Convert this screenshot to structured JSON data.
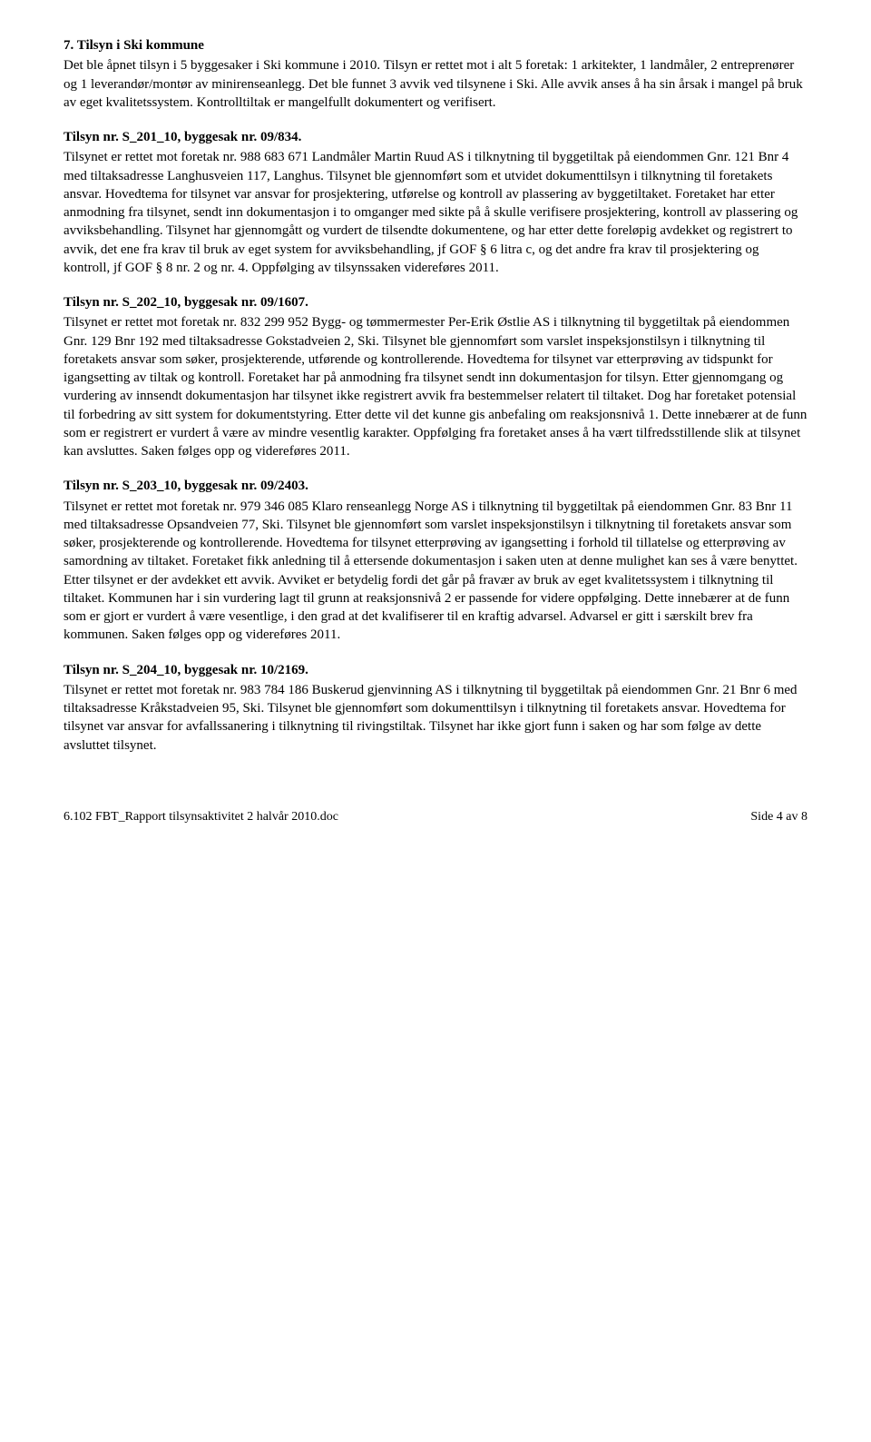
{
  "section7": {
    "heading": "7.  Tilsyn i Ski kommune",
    "intro": "Det ble åpnet tilsyn i 5 byggesaker i Ski kommune i 2010. Tilsyn er rettet mot i alt 5 foretak: 1 arkitekter, 1 landmåler, 2 entreprenører og 1 leverandør/montør av minirenseanlegg. Det ble funnet 3 avvik ved tilsynene i Ski. Alle avvik anses å ha sin årsak i mangel på bruk av eget kvalitetssystem. Kontrolltiltak er mangelfullt dokumentert og verifisert."
  },
  "tilsyn201": {
    "heading": "Tilsyn nr. S_201_10, byggesak nr. 09/834.",
    "body": "Tilsynet er rettet mot foretak nr. 988 683 671 Landmåler Martin Ruud AS i tilknytning til byggetiltak på eiendommen Gnr. 121 Bnr 4 med tiltaksadresse Langhusveien 117, Langhus. Tilsynet ble gjennomført som et utvidet dokumenttilsyn i tilknytning til foretakets ansvar. Hovedtema for tilsynet var ansvar for prosjektering, utførelse og kontroll av plassering av byggetiltaket. Foretaket har etter anmodning fra tilsynet, sendt inn dokumentasjon i to omganger med sikte på å skulle verifisere prosjektering, kontroll av plassering og avviksbehandling. Tilsynet har gjennomgått og vurdert de tilsendte dokumentene, og har etter dette foreløpig avdekket og registrert to avvik, det ene fra krav til bruk av eget system for avviksbehandling, jf GOF § 6 litra c, og det andre fra krav til prosjektering og kontroll, jf GOF § 8 nr. 2 og nr. 4. Oppfølging av tilsynssaken videreføres 2011."
  },
  "tilsyn202": {
    "heading": "Tilsyn nr. S_202_10, byggesak nr. 09/1607.",
    "body": "Tilsynet er rettet mot foretak nr. 832 299 952 Bygg- og tømmermester Per-Erik Østlie AS  i tilknytning til byggetiltak på eiendommen Gnr. 129 Bnr 192 med tiltaksadresse Gokstadveien 2, Ski. Tilsynet ble gjennomført som varslet inspeksjonstilsyn i tilknytning til foretakets ansvar som søker, prosjekterende, utførende og kontrollerende. Hovedtema for tilsynet var etterprøving av tidspunkt for igangsetting av tiltak og kontroll. Foretaket har på anmodning fra tilsynet sendt inn dokumentasjon for tilsyn. Etter gjennomgang og vurdering av innsendt dokumentasjon har tilsynet ikke registrert avvik fra bestemmelser relatert til tiltaket. Dog har foretaket potensial til forbedring av sitt system for dokumentstyring. Etter dette vil det kunne gis anbefaling om reaksjonsnivå 1. Dette innebærer at de funn som er registrert er vurdert å være av mindre vesentlig karakter. Oppfølging fra foretaket anses å ha vært tilfredsstillende slik at tilsynet kan avsluttes. Saken følges opp og videreføres 2011."
  },
  "tilsyn203": {
    "heading": "Tilsyn nr. S_203_10, byggesak nr. 09/2403.",
    "body": "Tilsynet er rettet mot foretak nr. 979 346 085 Klaro renseanlegg Norge AS i tilknytning til byggetiltak på eiendommen Gnr. 83 Bnr 11 med tiltaksadresse Opsandveien 77, Ski. Tilsynet ble gjennomført som varslet inspeksjonstilsyn i tilknytning til foretakets ansvar som søker, prosjekterende og kontrollerende. Hovedtema for tilsynet etterprøving av igangsetting i forhold til tillatelse og etterprøving av samordning av tiltaket. Foretaket fikk anledning til å ettersende dokumentasjon i saken uten at denne mulighet kan ses å være benyttet. Etter tilsynet er der avdekket ett avvik. Avviket er betydelig fordi det går på fravær av bruk av eget kvalitetssystem i tilknytning til tiltaket. Kommunen har i sin vurdering lagt til grunn at reaksjonsnivå 2 er passende for videre oppfølging. Dette innebærer at de funn som er gjort er vurdert å være vesentlige, i den grad at det kvalifiserer til en kraftig advarsel. Advarsel er gitt i særskilt brev fra kommunen. Saken følges opp og videreføres 2011."
  },
  "tilsyn204": {
    "heading": "Tilsyn nr. S_204_10, byggesak nr. 10/2169.",
    "body": "Tilsynet er rettet mot foretak nr. 983 784 186 Buskerud gjenvinning AS i tilknytning til byggetiltak på eiendommen Gnr. 21 Bnr 6 med tiltaksadresse Kråkstadveien 95, Ski. Tilsynet ble gjennomført som dokumenttilsyn i tilknytning til foretakets ansvar. Hovedtema for tilsynet var ansvar for avfallssanering i tilknytning til rivingstiltak. Tilsynet har ikke gjort funn i saken og har som følge av dette avsluttet tilsynet."
  },
  "footer": {
    "left": "6.102 FBT_Rapport tilsynsaktivitet 2 halvår 2010.doc",
    "right": "Side 4 av 8"
  }
}
